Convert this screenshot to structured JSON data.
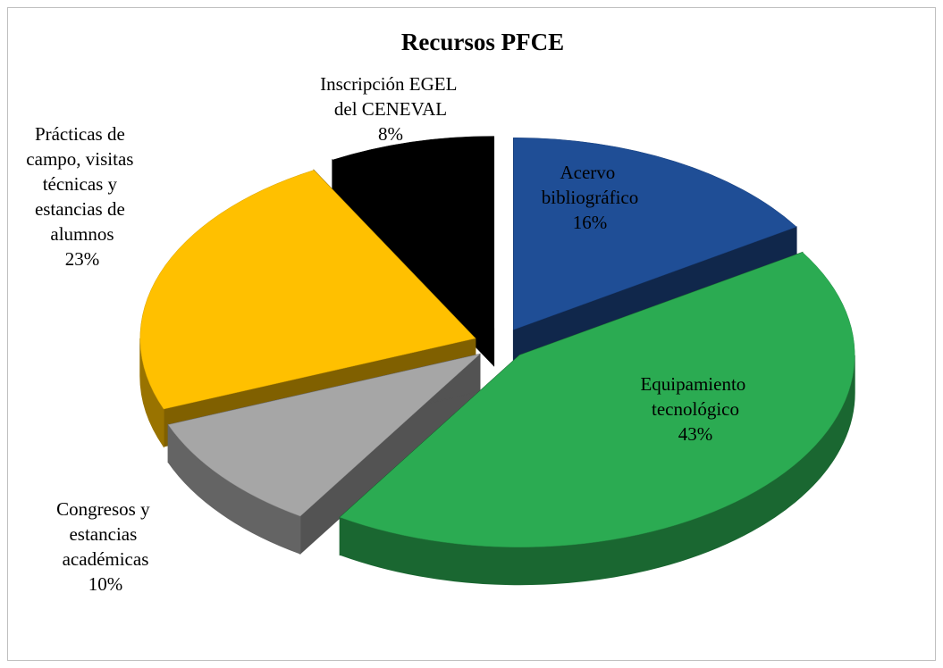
{
  "chart_data": {
    "type": "pie3d",
    "title": "Recursos PFCE",
    "categories": [
      "Acervo bibliográfico",
      "Equipamiento tecnológico",
      "Congresos y estancias académicas",
      "Prácticas de campo, visitas técnicas y estancias de alumnos",
      "Inscripción EGEL del CENEVAL"
    ],
    "values": [
      16,
      43,
      10,
      23,
      8
    ],
    "value_labels": [
      "16%",
      "43%",
      "10%",
      "23%",
      "8%"
    ],
    "colors": [
      "#1f4e96",
      "#2bab52",
      "#a6a6a6",
      "#ffc000",
      "#000000"
    ],
    "exploded": true
  }
}
